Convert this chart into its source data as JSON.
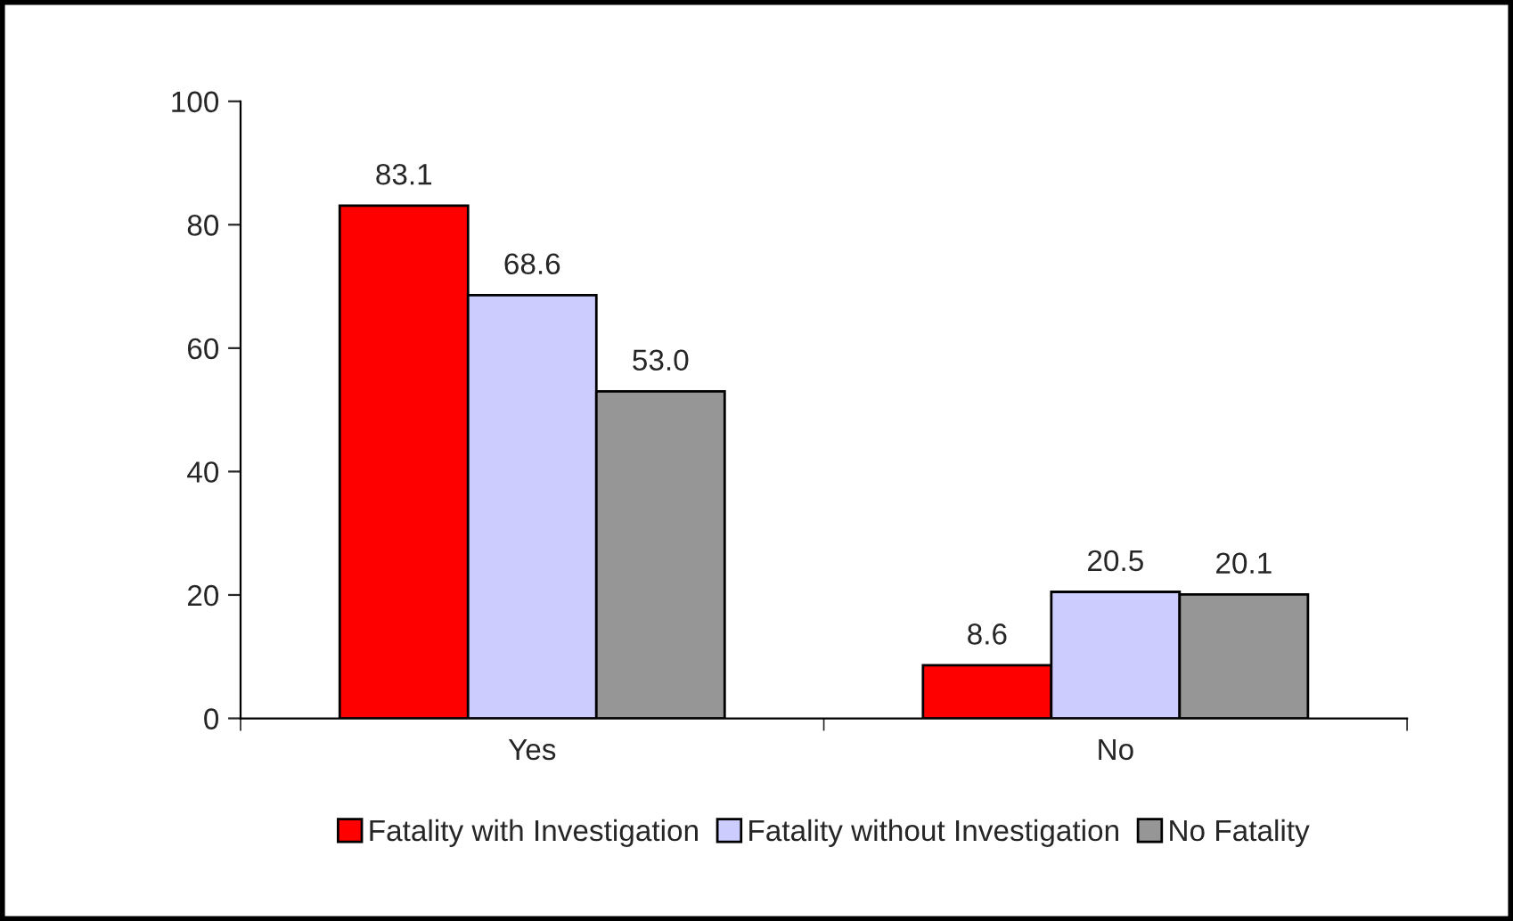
{
  "chart_data": {
    "type": "bar",
    "categories": [
      "Yes",
      "No"
    ],
    "series": [
      {
        "name": "Fatality with Investigation",
        "color": "#ff0000",
        "values": [
          83.1,
          8.6
        ]
      },
      {
        "name": "Fatality without Investigation",
        "color": "#ccccff",
        "values": [
          68.6,
          20.5
        ]
      },
      {
        "name": "No Fatality",
        "color": "#969696",
        "values": [
          53.0,
          20.1
        ]
      }
    ],
    "value_labels": [
      [
        "83.1",
        "8.6"
      ],
      [
        "68.6",
        "20.5"
      ],
      [
        "53.0",
        "20.1"
      ]
    ],
    "ylim": [
      0,
      100
    ],
    "yticks": [
      0,
      20,
      40,
      60,
      80,
      100
    ],
    "grid": false,
    "legend": "bottom"
  }
}
